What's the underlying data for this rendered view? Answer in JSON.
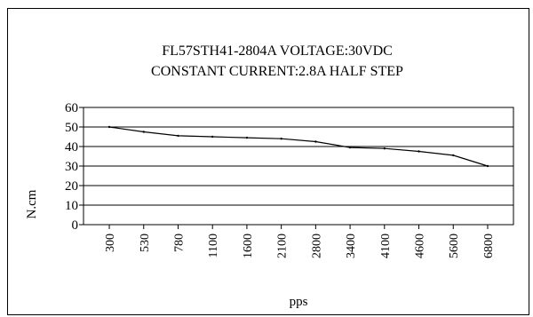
{
  "chart_data": {
    "type": "line",
    "title": "FL57STH41-2804A   VOLTAGE:30VDC",
    "subtitle": "CONSTANT  CURRENT:2.8A HALF STEP",
    "xlabel": "pps",
    "ylabel": "N.cm",
    "categories": [
      "300",
      "530",
      "780",
      "1100",
      "1600",
      "2100",
      "2800",
      "3400",
      "4100",
      "4600",
      "5600",
      "6800"
    ],
    "series": [
      {
        "values": [
          50,
          47.5,
          45.5,
          45,
          44.5,
          44,
          42.5,
          39.5,
          39,
          37.5,
          35.5,
          30
        ]
      }
    ],
    "yticks": [
      0,
      10,
      20,
      30,
      40,
      50,
      60
    ],
    "ylim": [
      0,
      60
    ],
    "grid": true,
    "legend": "none",
    "line_color": "#000000"
  }
}
